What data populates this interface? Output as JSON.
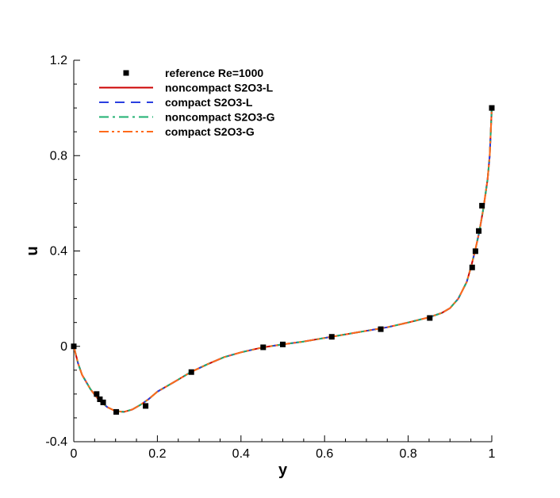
{
  "chart_data": {
    "type": "line",
    "title": "",
    "xlabel": "y",
    "ylabel": "u",
    "xlim": [
      0,
      1
    ],
    "ylim": [
      -0.4,
      1.2
    ],
    "x_ticks": [
      {
        "v": 0,
        "label": "0"
      },
      {
        "v": 0.2,
        "label": "0.2"
      },
      {
        "v": 0.4,
        "label": "0.4"
      },
      {
        "v": 0.6,
        "label": "0.6"
      },
      {
        "v": 0.8,
        "label": "0.8"
      },
      {
        "v": 1,
        "label": "1"
      }
    ],
    "y_ticks": [
      {
        "v": -0.4,
        "label": "-0.4"
      },
      {
        "v": 0,
        "label": "0"
      },
      {
        "v": 0.4,
        "label": "0.4"
      },
      {
        "v": 0.8,
        "label": "0.8"
      },
      {
        "v": 1.2,
        "label": "1.2"
      }
    ],
    "grid": false,
    "legend_position": "top-left",
    "reference": {
      "name": "reference Re=1000",
      "color": "#000000",
      "marker": "square",
      "points": [
        [
          0,
          0
        ],
        [
          0.0547,
          -0.2
        ],
        [
          0.0625,
          -0.222
        ],
        [
          0.0703,
          -0.235
        ],
        [
          0.1016,
          -0.275
        ],
        [
          0.1719,
          -0.25
        ],
        [
          0.2813,
          -0.108
        ],
        [
          0.4531,
          -0.004
        ],
        [
          0.5,
          0.008
        ],
        [
          0.6172,
          0.04
        ],
        [
          0.7344,
          0.072
        ],
        [
          0.8516,
          0.119
        ],
        [
          0.9531,
          0.331
        ],
        [
          0.9609,
          0.399
        ],
        [
          0.9688,
          0.484
        ],
        [
          0.9766,
          0.59
        ],
        [
          1,
          1.0
        ]
      ]
    },
    "series": [
      {
        "name": "noncompact S2O3-L",
        "color": "#cc0000",
        "dash": "solid"
      },
      {
        "name": "compact S2O3-L",
        "color": "#2a3fe0",
        "dash": "dashed"
      },
      {
        "name": "noncompact S2O3-G",
        "color": "#1fb070",
        "dash": "dashdot"
      },
      {
        "name": "compact S2O3-G",
        "color": "#ff6a1a",
        "dash": "dashdotdot"
      }
    ],
    "curve": {
      "x": [
        0,
        0.01,
        0.02,
        0.04,
        0.06,
        0.08,
        0.1,
        0.12,
        0.14,
        0.16,
        0.18,
        0.2,
        0.24,
        0.28,
        0.32,
        0.36,
        0.4,
        0.45,
        0.5,
        0.55,
        0.6,
        0.65,
        0.7,
        0.75,
        0.8,
        0.85,
        0.88,
        0.9,
        0.92,
        0.94,
        0.95,
        0.96,
        0.97,
        0.98,
        0.99,
        0.995,
        1
      ],
      "y": [
        0,
        -0.07,
        -0.12,
        -0.18,
        -0.225,
        -0.255,
        -0.272,
        -0.275,
        -0.265,
        -0.245,
        -0.22,
        -0.19,
        -0.15,
        -0.108,
        -0.075,
        -0.045,
        -0.025,
        -0.005,
        0.008,
        0.02,
        0.035,
        0.05,
        0.065,
        0.08,
        0.1,
        0.122,
        0.14,
        0.16,
        0.2,
        0.27,
        0.33,
        0.4,
        0.48,
        0.58,
        0.7,
        0.8,
        1.0
      ]
    }
  }
}
